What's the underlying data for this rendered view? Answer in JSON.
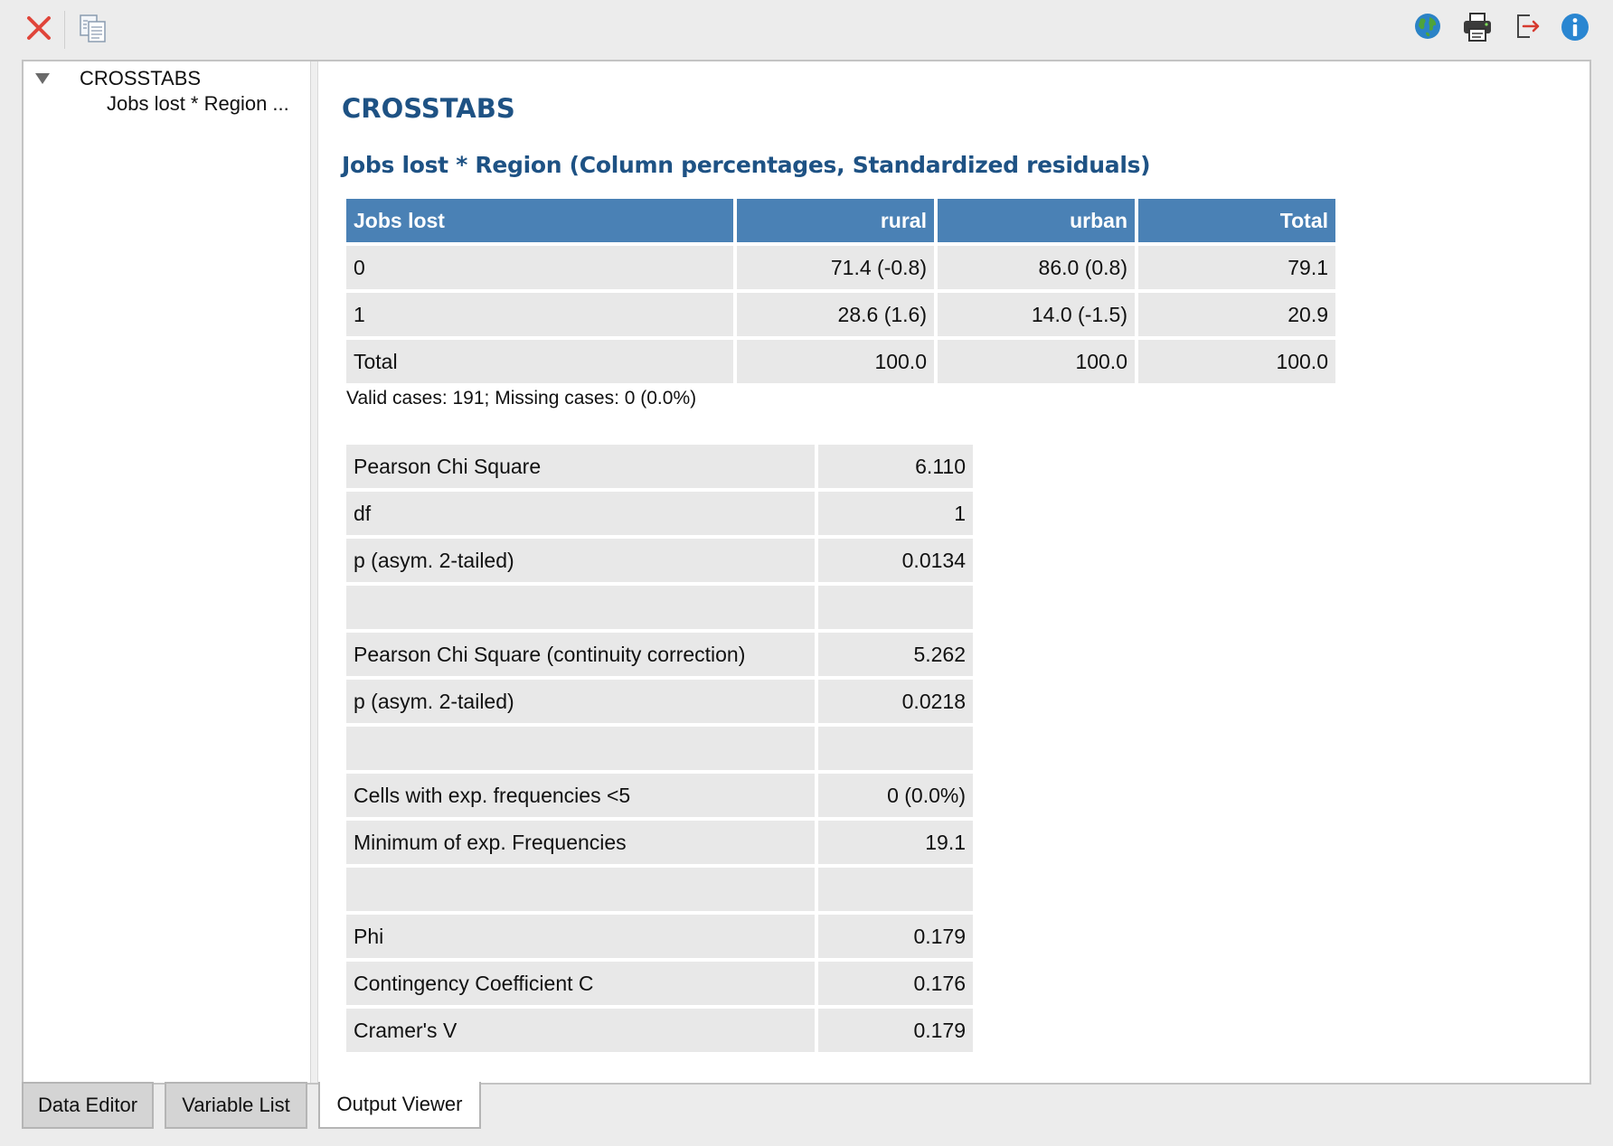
{
  "toolbar": {
    "icons": [
      "close-icon",
      "copy-icon",
      "globe-icon",
      "print-icon",
      "export-icon",
      "info-icon"
    ],
    "colors": {
      "close": "#e0453a",
      "info": "#2a86d1",
      "export_arrow": "#d63a2f"
    }
  },
  "navigator": {
    "root_label": "CROSSTABS",
    "child_label": "Jobs lost * Region ..."
  },
  "output": {
    "title": "CROSSTABS",
    "subtitle": "Jobs lost * Region (Column percentages, Standardized residuals)",
    "crosstab": {
      "headers": [
        "Jobs lost",
        "rural",
        "urban",
        "Total"
      ],
      "rows": [
        [
          "0",
          "71.4 (-0.8)",
          "86.0 (0.8)",
          "79.1"
        ],
        [
          "1",
          "28.6 (1.6)",
          "14.0 (-1.5)",
          "20.9"
        ],
        [
          "Total",
          "100.0",
          "100.0",
          "100.0"
        ]
      ],
      "header_color": "#4a81b5"
    },
    "valid_cases": "Valid cases: 191; Missing cases: 0 (0.0%)",
    "stats": [
      [
        "Pearson Chi Square",
        "6.110"
      ],
      [
        "df",
        "1"
      ],
      [
        "p (asym. 2-tailed)",
        "0.0134"
      ],
      [
        "",
        ""
      ],
      [
        "Pearson Chi Square (continuity correction)",
        "5.262"
      ],
      [
        "p (asym. 2-tailed)",
        "0.0218"
      ],
      [
        "",
        ""
      ],
      [
        "Cells with exp. frequencies <5",
        "0 (0.0%)"
      ],
      [
        "Minimum of exp. Frequencies",
        "19.1"
      ],
      [
        "",
        ""
      ],
      [
        "Phi",
        "0.179"
      ],
      [
        "Contingency Coefficient C",
        "0.176"
      ],
      [
        "Cramer's V",
        "0.179"
      ]
    ]
  },
  "tabs": [
    {
      "label": "Data Editor",
      "active": false
    },
    {
      "label": "Variable List",
      "active": false
    },
    {
      "label": "Output Viewer",
      "active": true
    }
  ]
}
